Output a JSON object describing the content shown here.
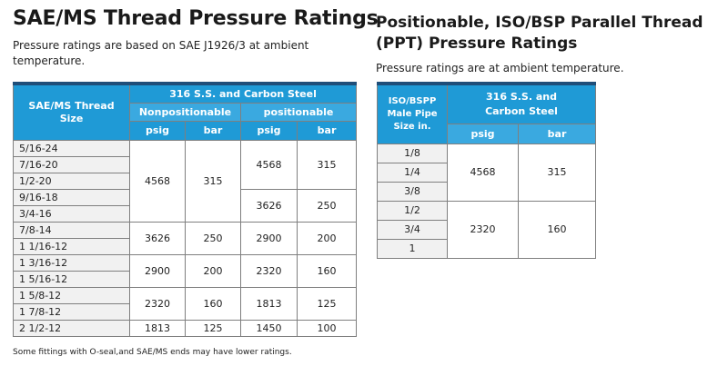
{
  "left": {
    "title": "SAE/MS Thread Pressure Ratings",
    "description": "Pressure ratings are based on SAE J1926/3 at ambient temperature.",
    "table": {
      "col_header": "SAE/MS Thread Size",
      "group_header": "316 S.S. and Carbon Steel",
      "sub_nonpos": "Nonpositionable",
      "sub_pos": "positionable",
      "psig": "psig",
      "bar": "bar",
      "rows": [
        "5/16-24",
        "7/16-20",
        "1/2-20",
        "9/16-18",
        "3/4-16",
        "7/8-14",
        "1 1/16-12",
        "1 3/16-12",
        "1 5/16-12",
        "1 5/8-12",
        "1 7/8-12",
        "2 1/2-12"
      ],
      "nonpos": [
        {
          "psig": "4568",
          "bar": "315"
        },
        {
          "psig": "3626",
          "bar": "250"
        },
        {
          "psig": "2900",
          "bar": "200"
        },
        {
          "psig": "2320",
          "bar": "160"
        },
        {
          "psig": "1813",
          "bar": "125"
        }
      ],
      "pos": [
        {
          "psig": "4568",
          "bar": "315"
        },
        {
          "psig": "3626",
          "bar": "250"
        },
        {
          "psig": "2900",
          "bar": "200"
        },
        {
          "psig": "2320",
          "bar": "160"
        },
        {
          "psig": "1813",
          "bar": "125"
        },
        {
          "psig": "1450",
          "bar": "100"
        }
      ]
    },
    "footnote": "Some fittings with O-seal,and SAE/MS ends may have lower ratings."
  },
  "right": {
    "title": "Positionable, ISO/BSP Parallel Thread (PPT) Pressure Ratings",
    "description": "Pressure ratings are at ambient temperature.",
    "table": {
      "col_header": "ISO/BSPP Male Pipe Size in.",
      "group_header": "316 S.S. and Carbon Steel",
      "psig": "psig",
      "bar": "bar",
      "rows": [
        "1/8",
        "1/4",
        "3/8",
        "1/2",
        "3/4",
        "1"
      ],
      "values": [
        {
          "psig": "4568",
          "bar": "315"
        },
        {
          "psig": "2320",
          "bar": "160"
        }
      ]
    }
  }
}
